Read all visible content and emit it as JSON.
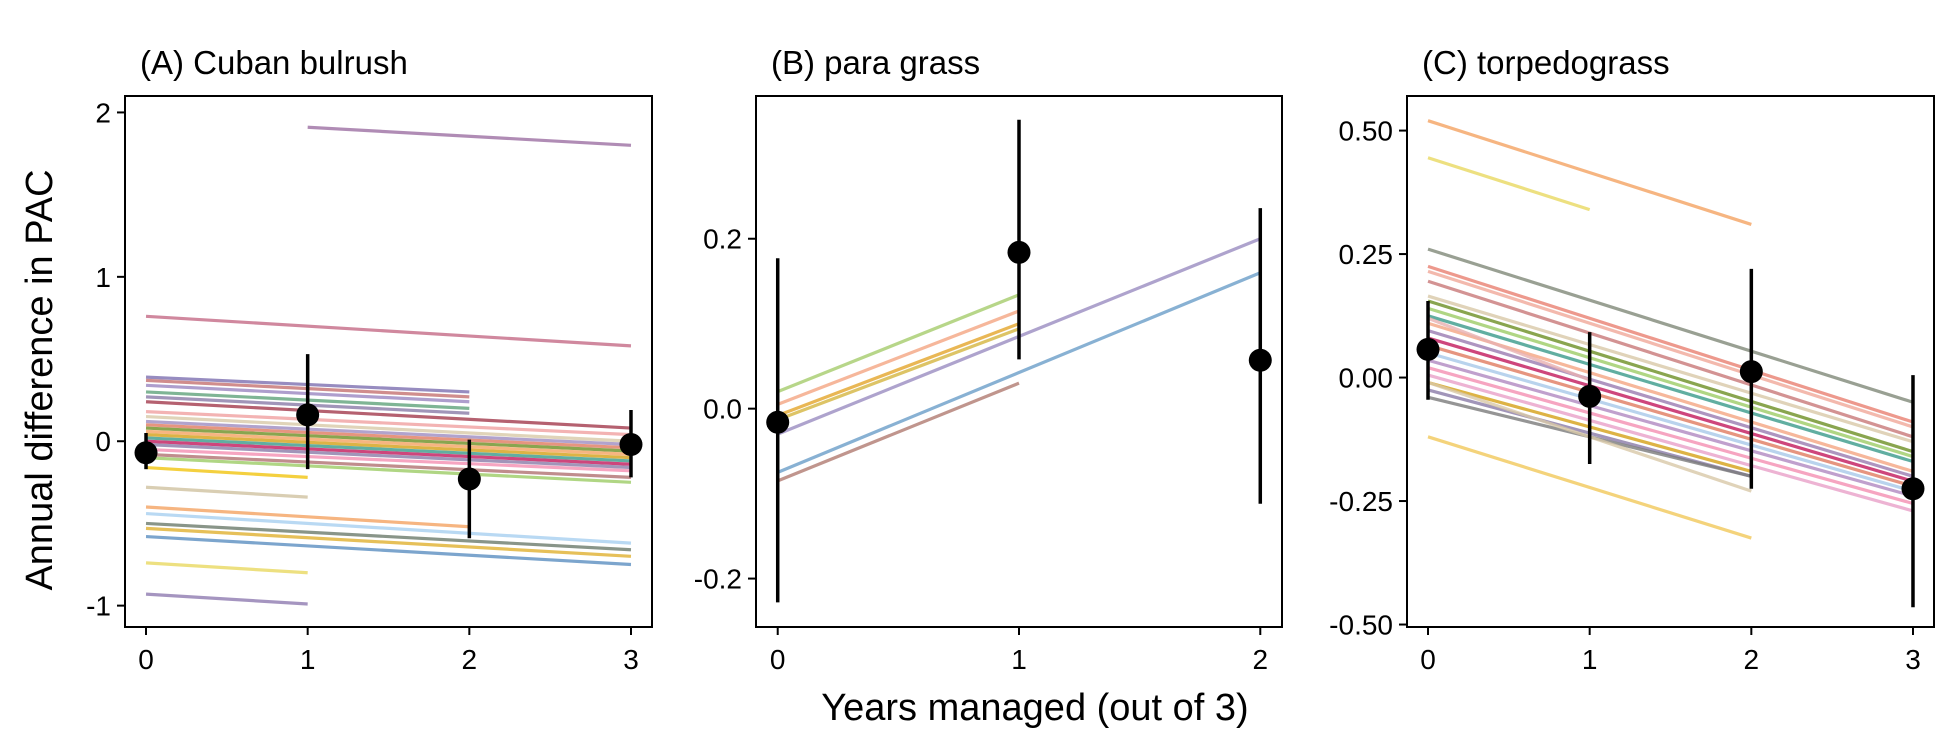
{
  "figure": {
    "xlabel": "Years managed (out of 3)",
    "ylabel": "Annual difference in PAC"
  },
  "chart_data": [
    {
      "type": "line",
      "title": "(A) Cuban bulrush",
      "xlim": [
        -0.13,
        3.13
      ],
      "ylim": [
        -1.13,
        2.1
      ],
      "xticks": [
        0,
        1,
        2,
        3
      ],
      "yticks": [
        -1,
        0,
        1,
        2
      ],
      "ytick_labels": [
        "-1",
        "0",
        "1",
        "2"
      ],
      "points": [
        {
          "x": 0,
          "y": -0.07,
          "lo": -0.17,
          "hi": 0.05
        },
        {
          "x": 1,
          "y": 0.16,
          "lo": -0.17,
          "hi": 0.53
        },
        {
          "x": 2,
          "y": -0.23,
          "lo": -0.59,
          "hi": 0.01
        },
        {
          "x": 3,
          "y": -0.02,
          "lo": -0.22,
          "hi": 0.19
        }
      ],
      "lines": [
        {
          "x": [
            1,
            3
          ],
          "y": [
            1.91,
            1.8
          ],
          "color": "#9c6fa3"
        },
        {
          "x": [
            0,
            3
          ],
          "y": [
            0.76,
            0.58
          ],
          "color": "#c46a86"
        },
        {
          "x": [
            0,
            2
          ],
          "y": [
            0.39,
            0.3
          ],
          "color": "#7d6fb0"
        },
        {
          "x": [
            0,
            2
          ],
          "y": [
            0.37,
            0.27
          ],
          "color": "#c47070"
        },
        {
          "x": [
            0,
            2
          ],
          "y": [
            0.34,
            0.24
          ],
          "color": "#9a86c0"
        },
        {
          "x": [
            0,
            2
          ],
          "y": [
            0.3,
            0.2
          ],
          "color": "#5fa37a"
        },
        {
          "x": [
            0,
            2
          ],
          "y": [
            0.27,
            0.17
          ],
          "color": "#8a7aa8"
        },
        {
          "x": [
            0,
            3
          ],
          "y": [
            0.24,
            0.08
          ],
          "color": "#a33a4c"
        },
        {
          "x": [
            0,
            3
          ],
          "y": [
            0.18,
            0.04
          ],
          "color": "#f0a0a0"
        },
        {
          "x": [
            0,
            3
          ],
          "y": [
            0.15,
            0.0
          ],
          "color": "#d8c9a8"
        },
        {
          "x": [
            0,
            3
          ],
          "y": [
            0.12,
            -0.02
          ],
          "color": "#9e8cc0"
        },
        {
          "x": [
            0,
            3
          ],
          "y": [
            0.1,
            -0.04
          ],
          "color": "#e07a5f"
        },
        {
          "x": [
            0,
            3
          ],
          "y": [
            0.08,
            -0.06
          ],
          "color": "#6b8e23"
        },
        {
          "x": [
            0,
            3
          ],
          "y": [
            0.06,
            -0.08
          ],
          "color": "#f4a261"
        },
        {
          "x": [
            0,
            3
          ],
          "y": [
            0.04,
            -0.1
          ],
          "color": "#d4a017"
        },
        {
          "x": [
            0,
            3
          ],
          "y": [
            0.02,
            -0.12
          ],
          "color": "#3a9a8a"
        },
        {
          "x": [
            0,
            3
          ],
          "y": [
            0.0,
            -0.14
          ],
          "color": "#c2185b"
        },
        {
          "x": [
            0,
            3
          ],
          "y": [
            -0.02,
            -0.16
          ],
          "color": "#8a7aa8"
        },
        {
          "x": [
            0,
            3
          ],
          "y": [
            -0.05,
            -0.18
          ],
          "color": "#f48fb1"
        },
        {
          "x": [
            0,
            3
          ],
          "y": [
            -0.08,
            -0.22
          ],
          "color": "#b07070"
        },
        {
          "x": [
            0,
            3
          ],
          "y": [
            -0.1,
            -0.25
          ],
          "color": "#9ccc65"
        },
        {
          "x": [
            0,
            1
          ],
          "y": [
            -0.16,
            -0.22
          ],
          "color": "#f1c40f"
        },
        {
          "x": [
            0,
            1
          ],
          "y": [
            -0.28,
            -0.34
          ],
          "color": "#cfc2a0"
        },
        {
          "x": [
            0,
            2
          ],
          "y": [
            -0.4,
            -0.52
          ],
          "color": "#f4a261"
        },
        {
          "x": [
            0,
            3
          ],
          "y": [
            -0.44,
            -0.62
          ],
          "color": "#a8d0f0"
        },
        {
          "x": [
            0,
            3
          ],
          "y": [
            -0.5,
            -0.66
          ],
          "color": "#6b7b6b"
        },
        {
          "x": [
            0,
            3
          ],
          "y": [
            -0.53,
            -0.7
          ],
          "color": "#e0b030"
        },
        {
          "x": [
            0,
            3
          ],
          "y": [
            -0.58,
            -0.75
          ],
          "color": "#5b8ec0"
        },
        {
          "x": [
            0,
            1
          ],
          "y": [
            -0.74,
            -0.8
          ],
          "color": "#e8d860"
        },
        {
          "x": [
            0,
            1
          ],
          "y": [
            -0.93,
            -0.99
          ],
          "color": "#8e7ab0"
        }
      ]
    },
    {
      "type": "line",
      "title": "(B) para grass",
      "xlim": [
        -0.09,
        2.09
      ],
      "ylim": [
        -0.257,
        0.368
      ],
      "xticks": [
        0,
        1,
        2
      ],
      "yticks": [
        -0.2,
        0.0,
        0.2
      ],
      "ytick_labels": [
        "-0.2",
        "0.0",
        "0.2"
      ],
      "points": [
        {
          "x": 0,
          "y": -0.016,
          "lo": -0.228,
          "hi": 0.177
        },
        {
          "x": 1,
          "y": 0.184,
          "lo": 0.058,
          "hi": 0.34
        },
        {
          "x": 2,
          "y": 0.057,
          "lo": -0.112,
          "hi": 0.236
        }
      ],
      "lines": [
        {
          "x": [
            0,
            1
          ],
          "y": [
            0.02,
            0.134
          ],
          "color": "#a5cc6b"
        },
        {
          "x": [
            0,
            1
          ],
          "y": [
            0.005,
            0.115
          ],
          "color": "#f4a582"
        },
        {
          "x": [
            0,
            1
          ],
          "y": [
            -0.008,
            0.1
          ],
          "color": "#e3a52b"
        },
        {
          "x": [
            0,
            1
          ],
          "y": [
            -0.013,
            0.094
          ],
          "color": "#d4b540"
        },
        {
          "x": [
            0,
            2
          ],
          "y": [
            -0.03,
            0.2
          ],
          "color": "#9a8cc0"
        },
        {
          "x": [
            0,
            2
          ],
          "y": [
            -0.075,
            0.16
          ],
          "color": "#6a9ec8"
        },
        {
          "x": [
            0,
            1
          ],
          "y": [
            -0.085,
            0.03
          ],
          "color": "#b07a70"
        }
      ]
    },
    {
      "type": "line",
      "title": "(C) torpedograss",
      "xlim": [
        -0.13,
        3.13
      ],
      "ylim": [
        -0.505,
        0.57
      ],
      "xticks": [
        0,
        1,
        2,
        3
      ],
      "yticks": [
        -0.5,
        -0.25,
        0.0,
        0.25,
        0.5
      ],
      "ytick_labels": [
        "-0.50",
        "-0.25",
        "0.00",
        "0.25",
        "0.50"
      ],
      "points": [
        {
          "x": 0,
          "y": 0.057,
          "lo": -0.045,
          "hi": 0.155
        },
        {
          "x": 1,
          "y": -0.038,
          "lo": -0.175,
          "hi": 0.092
        },
        {
          "x": 2,
          "y": 0.012,
          "lo": -0.225,
          "hi": 0.22
        },
        {
          "x": 3,
          "y": -0.225,
          "lo": -0.465,
          "hi": 0.005
        }
      ],
      "lines": [
        {
          "x": [
            0,
            2
          ],
          "y": [
            0.52,
            0.31
          ],
          "color": "#f4a261"
        },
        {
          "x": [
            0,
            1
          ],
          "y": [
            0.445,
            0.34
          ],
          "color": "#e8d860"
        },
        {
          "x": [
            0,
            3
          ],
          "y": [
            0.26,
            -0.05
          ],
          "color": "#808878"
        },
        {
          "x": [
            0,
            3
          ],
          "y": [
            0.225,
            -0.09
          ],
          "color": "#e88070"
        },
        {
          "x": [
            0,
            3
          ],
          "y": [
            0.215,
            -0.1
          ],
          "color": "#f0a898"
        },
        {
          "x": [
            0,
            3
          ],
          "y": [
            0.195,
            -0.12
          ],
          "color": "#c87878"
        },
        {
          "x": [
            0,
            3
          ],
          "y": [
            0.165,
            -0.13
          ],
          "color": "#d8c8a8"
        },
        {
          "x": [
            0,
            3
          ],
          "y": [
            0.155,
            -0.15
          ],
          "color": "#6b8e23"
        },
        {
          "x": [
            0,
            3
          ],
          "y": [
            0.14,
            -0.16
          ],
          "color": "#9ccc65"
        },
        {
          "x": [
            0,
            3
          ],
          "y": [
            0.125,
            -0.17
          ],
          "color": "#3a9a8a"
        },
        {
          "x": [
            0,
            3
          ],
          "y": [
            0.11,
            -0.19
          ],
          "color": "#f4a582"
        },
        {
          "x": [
            0,
            3
          ],
          "y": [
            0.095,
            -0.2
          ],
          "color": "#9a7ab0"
        },
        {
          "x": [
            0,
            3
          ],
          "y": [
            0.08,
            -0.21
          ],
          "color": "#c2185b"
        },
        {
          "x": [
            0,
            3
          ],
          "y": [
            0.065,
            -0.22
          ],
          "color": "#e07a5f"
        },
        {
          "x": [
            0,
            3
          ],
          "y": [
            0.05,
            -0.23
          ],
          "color": "#a8c8e8"
        },
        {
          "x": [
            0,
            3
          ],
          "y": [
            0.035,
            -0.24
          ],
          "color": "#b088c0"
        },
        {
          "x": [
            0,
            3
          ],
          "y": [
            0.02,
            -0.255
          ],
          "color": "#f48fb1"
        },
        {
          "x": [
            0,
            3
          ],
          "y": [
            0.005,
            -0.27
          ],
          "color": "#e8a0c8"
        },
        {
          "x": [
            0,
            2
          ],
          "y": [
            -0.01,
            -0.19
          ],
          "color": "#d4a017"
        },
        {
          "x": [
            0,
            2
          ],
          "y": [
            -0.025,
            -0.2
          ],
          "color": "#8a7aa8"
        },
        {
          "x": [
            0,
            2
          ],
          "y": [
            -0.04,
            -0.2
          ],
          "color": "#7a7a7a"
        },
        {
          "x": [
            0,
            2
          ],
          "y": [
            -0.01,
            -0.23
          ],
          "color": "#d8c8a8"
        },
        {
          "x": [
            0,
            2
          ],
          "y": [
            -0.12,
            -0.325
          ],
          "color": "#f1c85a"
        },
        {
          "x": [
            0,
            1
          ],
          "y": [
            0.12,
            -0.005
          ],
          "color": "#e8b0b0"
        }
      ]
    }
  ]
}
